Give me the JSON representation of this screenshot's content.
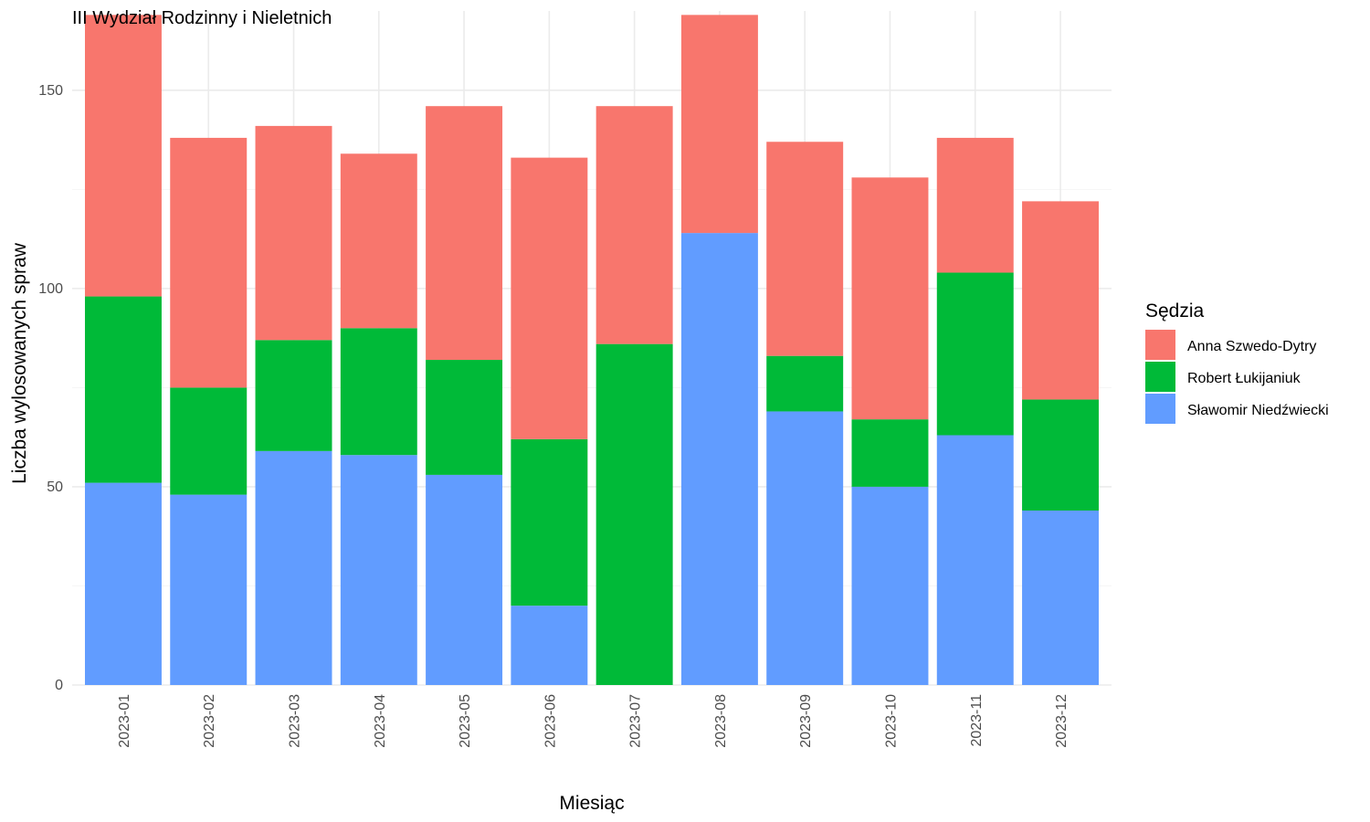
{
  "chart_data": {
    "type": "bar",
    "stacked": true,
    "title": "III Wydział Rodzinny i Nieletnich",
    "xlabel": "Miesiąc",
    "ylabel": "Liczba wylosowanych spraw",
    "ylim": [
      0,
      170
    ],
    "yticks": [
      0,
      50,
      100,
      150
    ],
    "grid": true,
    "legend_position": "right",
    "legend_title": "Sędzia",
    "categories": [
      "2023-01",
      "2023-02",
      "2023-03",
      "2023-04",
      "2023-05",
      "2023-06",
      "2023-07",
      "2023-08",
      "2023-09",
      "2023-10",
      "2023-11",
      "2023-12"
    ],
    "series": [
      {
        "name": "Sławomir Niedźwiecki",
        "color": "#619CFF",
        "values": [
          51,
          48,
          59,
          58,
          53,
          20,
          0,
          114,
          69,
          50,
          63,
          44
        ]
      },
      {
        "name": "Robert Łukijaniuk",
        "color": "#00BA38",
        "values": [
          47,
          27,
          28,
          32,
          29,
          42,
          86,
          0,
          14,
          17,
          41,
          28
        ]
      },
      {
        "name": "Anna Szwedo-Dytry",
        "color": "#F8766D",
        "values": [
          71,
          63,
          54,
          44,
          64,
          71,
          60,
          55,
          54,
          61,
          34,
          50
        ]
      }
    ],
    "legend_order": [
      "Anna Szwedo-Dytry",
      "Robert Łukijaniuk",
      "Sławomir Niedźwiecki"
    ]
  }
}
